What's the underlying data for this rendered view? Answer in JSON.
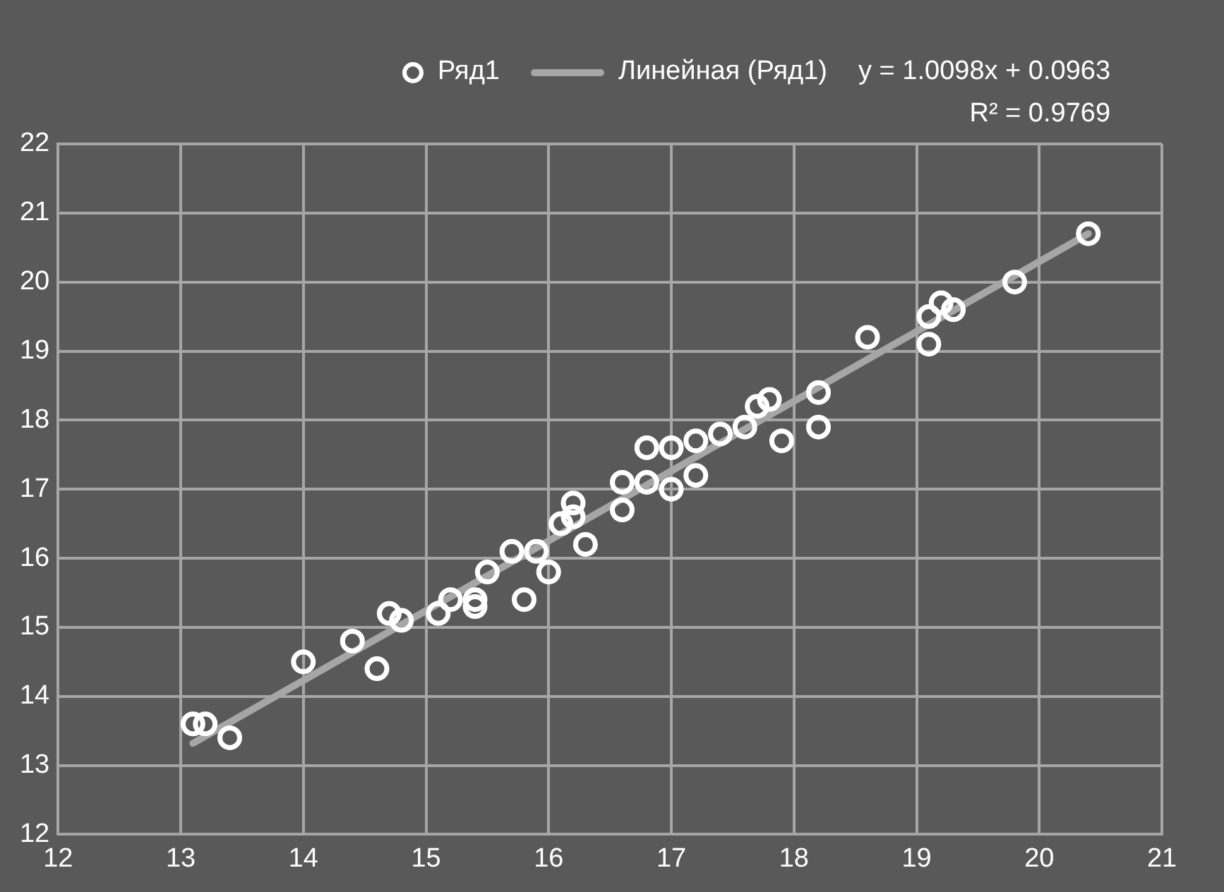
{
  "chart_data": {
    "type": "scatter",
    "xlim": [
      12,
      21
    ],
    "ylim": [
      12,
      22
    ],
    "xticks": [
      12,
      13,
      14,
      15,
      16,
      17,
      18,
      19,
      20,
      21
    ],
    "yticks": [
      12,
      13,
      14,
      15,
      16,
      17,
      18,
      19,
      20,
      21,
      22
    ],
    "grid": true,
    "legend": "top right",
    "marker": "circle",
    "series": [
      {
        "name": "Ряд1",
        "color": "#ffffff",
        "x": [
          13.1,
          13.2,
          13.4,
          14.0,
          14.4,
          14.6,
          14.7,
          14.8,
          15.1,
          15.2,
          15.4,
          15.4,
          15.5,
          15.7,
          15.8,
          15.9,
          16.0,
          16.1,
          16.2,
          16.2,
          16.3,
          16.6,
          16.6,
          16.8,
          16.8,
          17.0,
          17.0,
          17.2,
          17.2,
          17.4,
          17.6,
          17.7,
          17.8,
          17.9,
          18.2,
          18.2,
          18.6,
          19.1,
          19.1,
          19.2,
          19.3,
          19.8,
          20.4
        ],
        "values": [
          13.6,
          13.6,
          13.4,
          14.5,
          14.8,
          14.4,
          15.2,
          15.1,
          15.2,
          15.4,
          15.3,
          15.4,
          15.8,
          16.1,
          15.4,
          16.1,
          15.8,
          16.5,
          16.8,
          16.6,
          16.2,
          17.1,
          16.7,
          17.6,
          17.1,
          17.6,
          17.0,
          17.7,
          17.2,
          17.8,
          17.9,
          18.2,
          18.3,
          17.7,
          18.4,
          17.9,
          19.2,
          19.5,
          19.1,
          19.7,
          19.6,
          20.0,
          20.7
        ]
      },
      {
        "name": "Линейная (Ряд1)",
        "type": "line",
        "color": "#a6a6a6",
        "marker": "none",
        "line_style": "solid",
        "x": [
          13.1,
          20.4
        ],
        "values": [
          13.32,
          20.7
        ]
      }
    ],
    "annotations": [
      "y = 1.0098x + 0.0963",
      "R² = 0.9769"
    ]
  }
}
